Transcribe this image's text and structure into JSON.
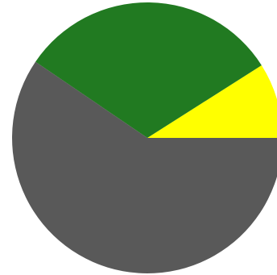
{
  "chart_data": {
    "type": "pie",
    "start_angle_deg": 0,
    "direction": "counterclockwise",
    "slices": [
      {
        "name": "",
        "value": 9,
        "color": "#ffff00"
      },
      {
        "name": "",
        "value": 31.5,
        "color": "#217a21"
      },
      {
        "name": "",
        "value": 59.5,
        "color": "#595959"
      }
    ],
    "title": "",
    "legend": "none"
  }
}
